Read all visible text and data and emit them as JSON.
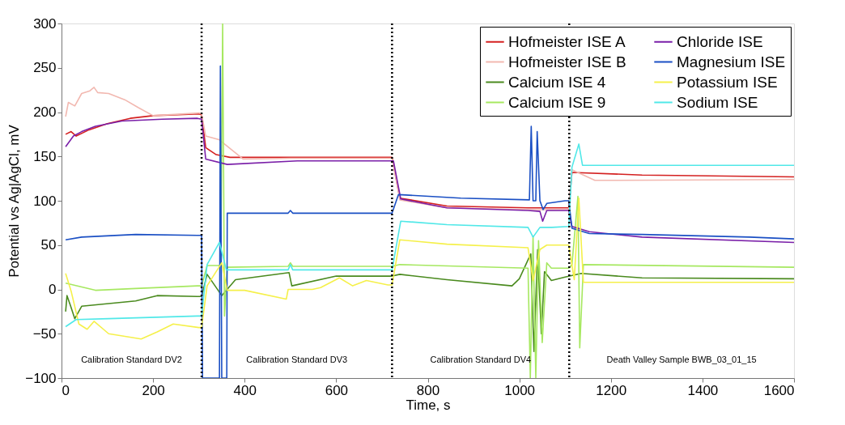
{
  "chart_data": {
    "type": "line",
    "xlabel": "Time, s",
    "ylabel": "Potential vs Ag|AgCl, mV",
    "xlim": [
      0,
      1600
    ],
    "xticks": [
      0,
      200,
      400,
      600,
      800,
      1000,
      1200,
      1400,
      1600
    ],
    "ylim": [
      -100,
      300
    ],
    "yticks": [
      -100,
      -50,
      0,
      50,
      100,
      150,
      200,
      250,
      300
    ],
    "grid": false,
    "legend": "top right",
    "marker": "none",
    "line_style": "solid",
    "series": [
      {
        "name": "Hofmeister ISE A",
        "color": "#d42020",
        "x": [
          9,
          21,
          32,
          60,
          100,
          150,
          200,
          300,
          306,
          315,
          338,
          368,
          500,
          722,
          739,
          842,
          1019,
          1108,
          1115,
          1268,
          1600
        ],
        "values": [
          175,
          178,
          173,
          180,
          187,
          193,
          196,
          198,
          197,
          160,
          152,
          149,
          149,
          149,
          103,
          94,
          92,
          92,
          132,
          129,
          127
        ]
      },
      {
        "name": "Hofmeister ISE B",
        "color": "#f2b8b0",
        "x": [
          9,
          15,
          29,
          44,
          62,
          71,
          79,
          103,
          138,
          168,
          200,
          300,
          306,
          315,
          344,
          397,
          500,
          722,
          739,
          842,
          1019,
          1108,
          1115,
          1165,
          1600
        ],
        "values": [
          195,
          211,
          207,
          221,
          224,
          228,
          222,
          221,
          214,
          205,
          196,
          199,
          198,
          173,
          169,
          147,
          148,
          148,
          101,
          92,
          90,
          90,
          135,
          123,
          124
        ]
      },
      {
        "name": "Calcium ISE 4",
        "color": "#4a8a1e",
        "x": [
          9,
          12,
          20,
          29,
          44,
          162,
          209,
          297,
          306,
          318,
          350,
          380,
          497,
          503,
          600,
          722,
          739,
          842,
          984,
          1000,
          1025,
          1032,
          1040,
          1048,
          1055,
          1070,
          1100,
          1135,
          1268,
          1600
        ],
        "values": [
          -25,
          -7,
          -19,
          -33,
          -19,
          -13,
          -7,
          -8,
          -8,
          17,
          -7,
          11,
          19,
          4,
          15,
          15,
          17,
          11,
          4,
          12,
          40,
          -70,
          45,
          -50,
          20,
          10,
          14,
          18,
          13,
          12
        ]
      },
      {
        "name": "Calcium ISE 9",
        "color": "#a6e860",
        "x": [
          9,
          74,
          162,
          297,
          306,
          318,
          348,
          352,
          356,
          362,
          495,
          500,
          505,
          722,
          739,
          1019,
          1024,
          1030,
          1036,
          1042,
          1050,
          1060,
          1070,
          1108,
          1115,
          1128,
          1132,
          1140,
          1600
        ],
        "values": [
          7,
          -1,
          1,
          4,
          4,
          27,
          27,
          300,
          -30,
          25,
          26,
          30,
          26,
          26,
          28,
          24,
          -100,
          60,
          -100,
          55,
          -60,
          30,
          24,
          24,
          28,
          105,
          -66,
          28,
          25
        ]
      },
      {
        "name": "Chloride ISE",
        "color": "#7a1fa8",
        "x": [
          9,
          26,
          44,
          74,
          132,
          220,
          297,
          306,
          315,
          362,
          515,
          725,
          741,
          842,
          1019,
          1045,
          1051,
          1060,
          1108,
          1115,
          1153,
          1268,
          1600
        ],
        "values": [
          161,
          173,
          178,
          184,
          190,
          192,
          193,
          192,
          147,
          141,
          145,
          145,
          102,
          92,
          89,
          88,
          77,
          89,
          89,
          71,
          65,
          59,
          53
        ]
      },
      {
        "name": "Magnesium ISE",
        "color": "#1a4fc4",
        "x": [
          9,
          44,
          162,
          297,
          306,
          308,
          345,
          347,
          350,
          355,
          361,
          362,
          495,
          500,
          505,
          722,
          736,
          872,
          1022,
          1026,
          1030,
          1036,
          1039,
          1045,
          1052,
          1060,
          1100,
          1108,
          1115,
          1153,
          1268,
          1503,
          1600
        ],
        "values": [
          56,
          59,
          62,
          61,
          61,
          -100,
          -100,
          252,
          -100,
          -100,
          -100,
          86,
          86,
          89,
          86,
          86,
          107,
          103,
          101,
          184,
          100,
          100,
          178,
          100,
          90,
          97,
          100,
          100,
          69,
          63,
          62,
          59,
          57
        ]
      },
      {
        "name": "Potassium ISE",
        "color": "#f5f04a",
        "x": [
          9,
          21,
          38,
          56,
          71,
          103,
          174,
          209,
          244,
          300,
          306,
          318,
          350,
          362,
          400,
          491,
          495,
          548,
          566,
          607,
          636,
          666,
          713,
          722,
          739,
          842,
          1019,
          1030,
          1045,
          1060,
          1108,
          1120,
          1130,
          1140,
          1600
        ],
        "values": [
          18,
          -2,
          -39,
          -45,
          -36,
          -50,
          -56,
          -48,
          -39,
          -43,
          -43,
          4,
          30,
          -1,
          -1,
          -11,
          0,
          0,
          2,
          13,
          4,
          10,
          5,
          5,
          56,
          51,
          47,
          10,
          45,
          50,
          50,
          11,
          103,
          8,
          8
        ]
      },
      {
        "name": "Sodium ISE",
        "color": "#50e8e8",
        "x": [
          9,
          32,
          103,
          297,
          306,
          318,
          345,
          360,
          495,
          500,
          505,
          722,
          741,
          842,
          1019,
          1030,
          1045,
          1071,
          1108,
          1115,
          1130,
          1138,
          1600
        ],
        "values": [
          -42,
          -34,
          -33,
          -30,
          -30,
          28,
          53,
          22,
          22,
          28,
          22,
          22,
          77,
          73,
          70,
          59,
          70,
          70,
          71,
          138,
          164,
          140,
          140
        ]
      }
    ],
    "ref_lines": [
      {
        "axis": "x",
        "value": 306,
        "color": "#000000",
        "line_style": "dotted"
      },
      {
        "axis": "x",
        "value": 722,
        "color": "#000000",
        "line_style": "dotted"
      },
      {
        "axis": "x",
        "value": 1109,
        "color": "#000000",
        "line_style": "dotted"
      }
    ],
    "annotations": [
      "Calibration Standard DV2",
      "Calibration Standard DV3",
      "Calibration Standard DV4",
      "Death Valley Sample BWB_03_01_15"
    ]
  }
}
